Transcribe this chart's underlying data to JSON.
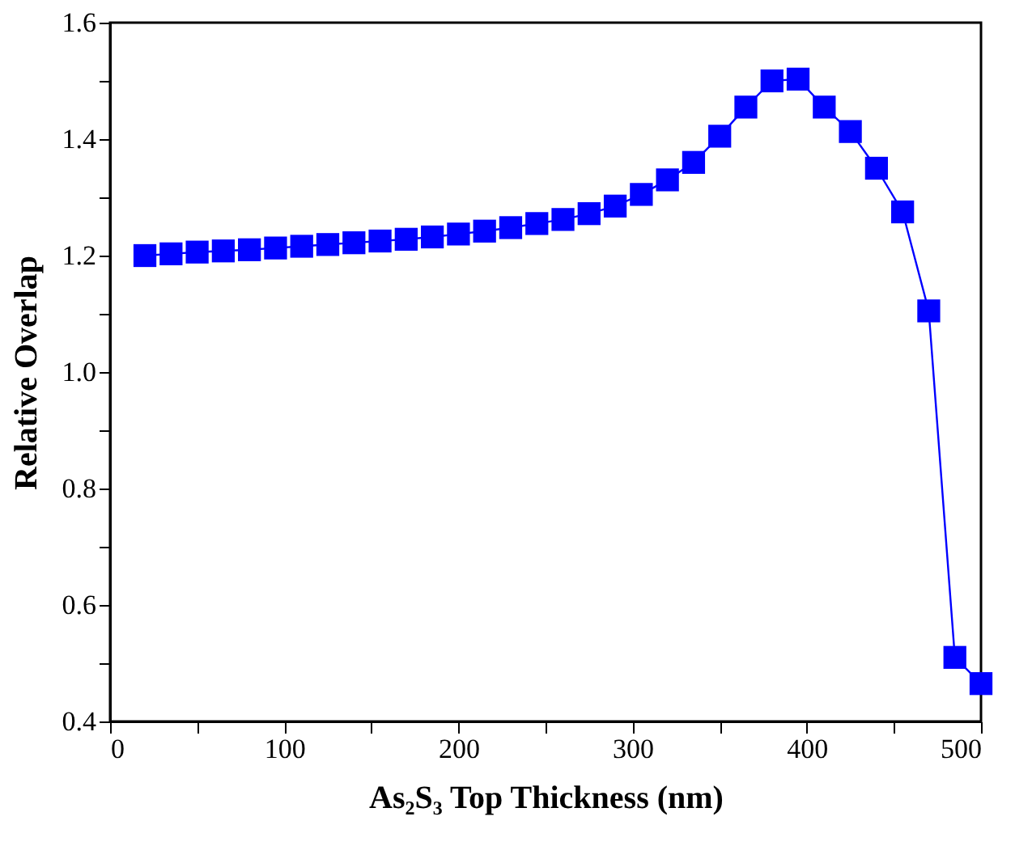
{
  "chart_data": {
    "type": "line",
    "xlabel": "As₂S₃ Top Thickness (nm)",
    "ylabel": "Relative Overlap",
    "x": [
      20,
      35,
      50,
      65,
      80,
      95,
      110,
      125,
      140,
      155,
      170,
      185,
      200,
      215,
      230,
      245,
      260,
      275,
      290,
      305,
      320,
      335,
      350,
      365,
      380,
      395,
      410,
      425,
      440,
      455,
      470,
      485,
      500
    ],
    "series": [
      {
        "color": "#0000ff",
        "values": [
          1.2,
          1.203,
          1.206,
          1.208,
          1.21,
          1.213,
          1.216,
          1.219,
          1.222,
          1.225,
          1.228,
          1.232,
          1.237,
          1.242,
          1.248,
          1.255,
          1.262,
          1.272,
          1.285,
          1.305,
          1.33,
          1.36,
          1.405,
          1.455,
          1.5,
          1.503,
          1.455,
          1.413,
          1.35,
          1.275,
          1.105,
          0.51,
          0.465
        ]
      }
    ],
    "marker": "square",
    "line_style": "solid",
    "grid": false,
    "xlim": [
      0,
      500
    ],
    "xticks": [
      0,
      {
        "value": 50,
        "label": null
      },
      100,
      {
        "value": 150,
        "label": null
      },
      200,
      {
        "value": 250,
        "label": null
      },
      300,
      {
        "value": 350,
        "label": null
      },
      400,
      {
        "value": 450,
        "label": null
      },
      500
    ],
    "ylim": [
      0.4,
      1.6
    ],
    "yticks": [
      0.4,
      {
        "value": 0.5,
        "label": null
      },
      0.6,
      {
        "value": 0.7,
        "label": null
      },
      0.8,
      {
        "value": 0.9,
        "label": null
      },
      {
        "value": 1.0,
        "label": "1.0"
      },
      {
        "value": 1.1,
        "label": null
      },
      1.2,
      {
        "value": 1.3,
        "label": null
      },
      1.4,
      {
        "value": 1.5,
        "label": null
      },
      1.6
    ]
  }
}
